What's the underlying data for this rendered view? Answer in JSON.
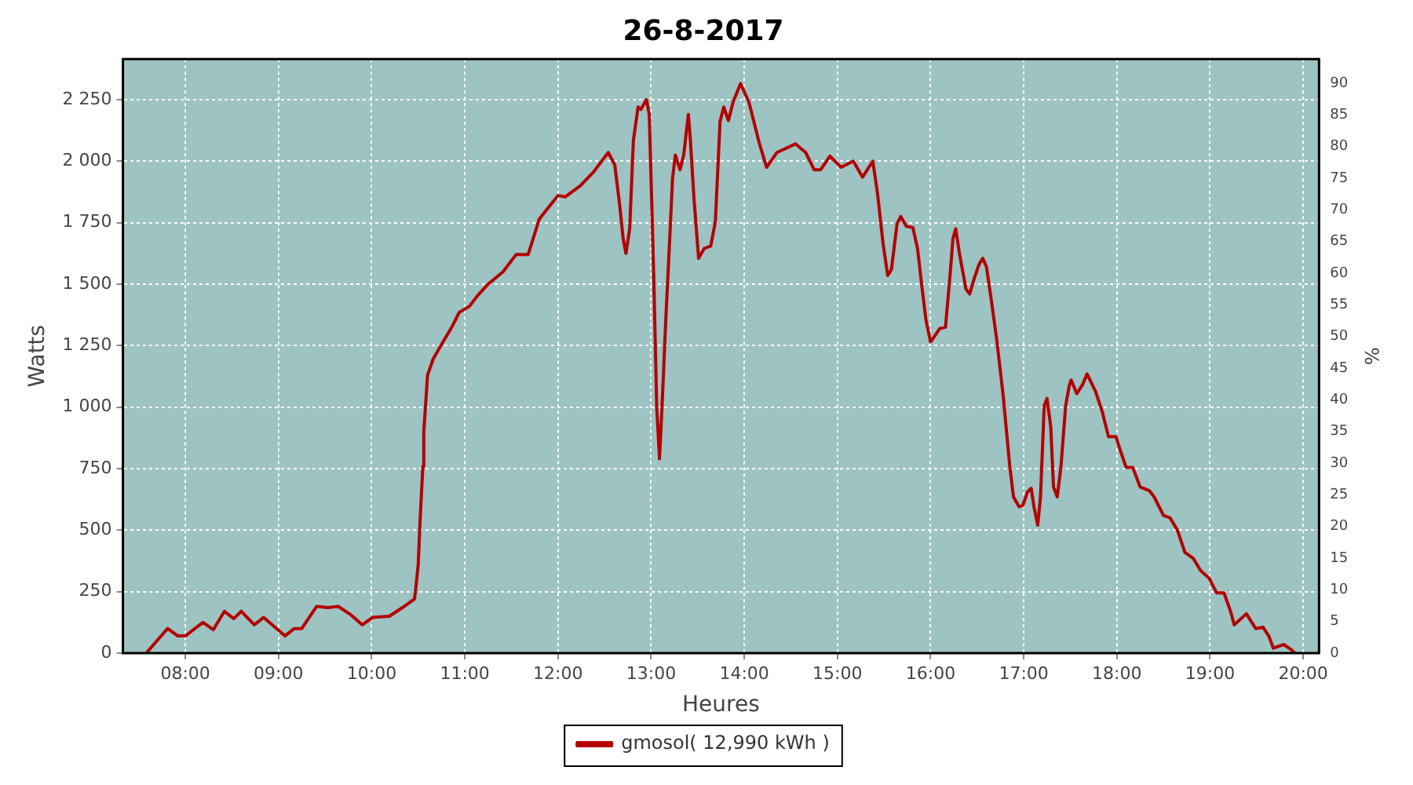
{
  "chart_data": {
    "type": "line",
    "title": "26-8-2017",
    "xlabel": "Heures",
    "ylabel": "Watts",
    "y2label": "%",
    "series": [
      {
        "name": "gmosol( 12,990 kWh )",
        "color": "#b30000",
        "x": [
          7.58,
          7.81,
          7.92,
          8.0,
          8.19,
          8.3,
          8.42,
          8.52,
          8.6,
          8.74,
          8.84,
          9.07,
          9.17,
          9.25,
          9.41,
          9.53,
          9.64,
          9.78,
          9.9,
          10.01,
          10.19,
          10.33,
          10.46,
          10.48,
          10.5,
          10.52,
          10.55,
          10.56,
          10.6,
          10.66,
          10.75,
          10.86,
          10.94,
          11.05,
          11.13,
          11.25,
          11.41,
          11.55,
          11.68,
          11.8,
          12.0,
          12.08,
          12.24,
          12.38,
          12.54,
          12.61,
          12.66,
          12.7,
          12.73,
          12.77,
          12.81,
          12.86,
          12.89,
          12.95,
          12.98,
          13.01,
          13.03,
          13.06,
          13.09,
          13.12,
          13.16,
          13.2,
          13.23,
          13.26,
          13.31,
          13.35,
          13.4,
          13.42,
          13.46,
          13.51,
          13.57,
          13.64,
          13.69,
          13.74,
          13.78,
          13.83,
          13.88,
          13.96,
          14.05,
          14.16,
          14.24,
          14.35,
          14.55,
          14.66,
          14.75,
          14.82,
          14.92,
          15.04,
          15.17,
          15.27,
          15.38,
          15.43,
          15.49,
          15.54,
          15.58,
          15.64,
          15.68,
          15.74,
          15.81,
          15.86,
          15.91,
          15.95,
          16.0,
          16.1,
          16.16,
          16.21,
          16.24,
          16.27,
          16.31,
          16.38,
          16.42,
          16.47,
          16.52,
          16.56,
          16.6,
          16.65,
          16.71,
          16.78,
          16.85,
          16.89,
          16.95,
          16.99,
          17.04,
          17.08,
          17.11,
          17.15,
          17.18,
          17.22,
          17.25,
          17.29,
          17.32,
          17.36,
          17.4,
          17.45,
          17.49,
          17.51,
          17.57,
          17.63,
          17.68,
          17.77,
          17.84,
          17.91,
          17.99,
          18.04,
          18.1,
          18.17,
          18.25,
          18.35,
          18.4,
          18.5,
          18.57,
          18.65,
          18.73,
          18.82,
          18.9,
          18.99,
          19.07,
          19.15,
          19.22,
          19.26,
          19.39,
          19.49,
          19.57,
          19.63,
          19.68,
          19.79,
          19.87,
          19.91
        ],
        "values": [
          0,
          100,
          70,
          70,
          125,
          95,
          170,
          140,
          170,
          115,
          145,
          70,
          100,
          100,
          190,
          185,
          190,
          155,
          115,
          145,
          150,
          185,
          220,
          285,
          360,
          540,
          760,
          900,
          1130,
          1195,
          1255,
          1325,
          1385,
          1410,
          1450,
          1500,
          1550,
          1620,
          1620,
          1765,
          1860,
          1855,
          1900,
          1955,
          2035,
          1985,
          1830,
          1685,
          1625,
          1725,
          2085,
          2220,
          2210,
          2250,
          2190,
          1790,
          1500,
          1005,
          790,
          1025,
          1375,
          1685,
          1930,
          2025,
          1965,
          2025,
          2190,
          2095,
          1850,
          1605,
          1645,
          1655,
          1755,
          2160,
          2220,
          2165,
          2240,
          2315,
          2240,
          2075,
          1975,
          2035,
          2070,
          2035,
          1965,
          1965,
          2020,
          1975,
          2000,
          1935,
          2000,
          1870,
          1665,
          1535,
          1560,
          1745,
          1775,
          1735,
          1730,
          1645,
          1480,
          1355,
          1265,
          1320,
          1325,
          1540,
          1685,
          1725,
          1625,
          1480,
          1460,
          1525,
          1580,
          1605,
          1570,
          1440,
          1275,
          1045,
          760,
          635,
          595,
          600,
          655,
          670,
          595,
          520,
          635,
          1005,
          1035,
          920,
          675,
          635,
          760,
          1005,
          1090,
          1110,
          1055,
          1090,
          1135,
          1065,
          985,
          880,
          880,
          820,
          755,
          755,
          675,
          660,
          635,
          560,
          550,
          500,
          410,
          385,
          335,
          305,
          245,
          245,
          170,
          115,
          160,
          100,
          105,
          70,
          20,
          35,
          15,
          0
        ]
      }
    ],
    "xlim": [
      7.33,
      20.17
    ],
    "xticks": [
      {
        "value": 8,
        "label": "08:00"
      },
      {
        "value": 9,
        "label": "09:00"
      },
      {
        "value": 10,
        "label": "10:00"
      },
      {
        "value": 11,
        "label": "11:00"
      },
      {
        "value": 12,
        "label": "12:00"
      },
      {
        "value": 13,
        "label": "13:00"
      },
      {
        "value": 14,
        "label": "14:00"
      },
      {
        "value": 15,
        "label": "15:00"
      },
      {
        "value": 16,
        "label": "16:00"
      },
      {
        "value": 17,
        "label": "17:00"
      },
      {
        "value": 18,
        "label": "18:00"
      },
      {
        "value": 19,
        "label": "19:00"
      },
      {
        "value": 20,
        "label": "20:00"
      }
    ],
    "ylim": [
      0,
      2415
    ],
    "yticks": [
      0,
      {
        "value": 250,
        "label": "250"
      },
      {
        "value": 500,
        "label": "500"
      },
      {
        "value": 750,
        "label": "750"
      },
      {
        "value": 1000,
        "label": "1 000"
      },
      {
        "value": 1250,
        "label": "1 250"
      },
      {
        "value": 1500,
        "label": "1 500"
      },
      {
        "value": 1750,
        "label": "1 750"
      },
      {
        "value": 2000,
        "label": "2 000"
      },
      {
        "value": 2250,
        "label": "2 250"
      }
    ],
    "y2lim": [
      0,
      93.8
    ],
    "y2ticks": [
      0,
      5,
      10,
      15,
      20,
      25,
      30,
      35,
      40,
      45,
      50,
      55,
      60,
      65,
      70,
      75,
      80,
      85,
      90
    ],
    "grid": true,
    "legend": "bottom",
    "marker": "none",
    "line_style": "solid"
  }
}
